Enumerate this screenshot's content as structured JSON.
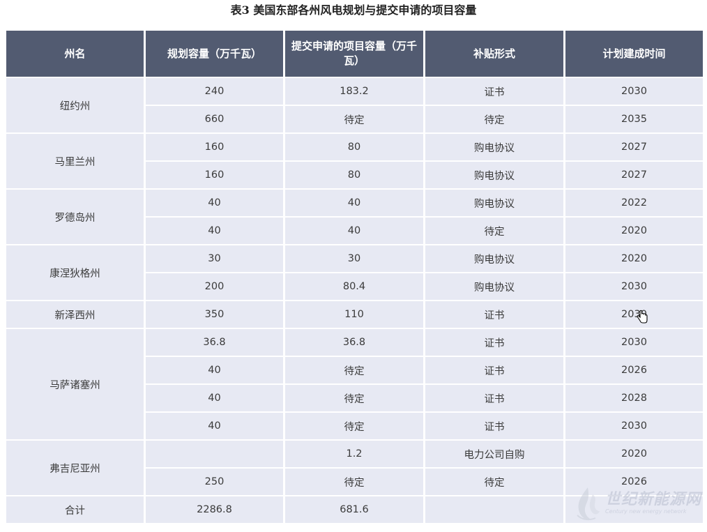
{
  "title": "表3 美国东部各州风电规划与提交申请的项目容量",
  "headers": [
    "州名",
    "规划容量（万千瓦）",
    "提交申请的项目容量（万千瓦）",
    "补贴形式",
    "计划建成时间"
  ],
  "states": [
    {
      "name": "纽约州",
      "rows": [
        {
          "planned": "240",
          "submitted": "183.2",
          "subsidy": "证书",
          "year": "2030"
        },
        {
          "planned": "660",
          "submitted": "待定",
          "subsidy": "待定",
          "year": "2035"
        }
      ]
    },
    {
      "name": "马里兰州",
      "rows": [
        {
          "planned": "160",
          "submitted": "80",
          "subsidy": "购电协议",
          "year": "2027"
        },
        {
          "planned": "160",
          "submitted": "80",
          "subsidy": "购电协议",
          "year": "2027"
        }
      ]
    },
    {
      "name": "罗德岛州",
      "rows": [
        {
          "planned": "40",
          "submitted": "40",
          "subsidy": "购电协议",
          "year": "2022"
        },
        {
          "planned": "40",
          "submitted": "40",
          "subsidy": "待定",
          "year": "2020"
        }
      ]
    },
    {
      "name": "康涅狄格州",
      "rows": [
        {
          "planned": "30",
          "submitted": "30",
          "subsidy": "购电协议",
          "year": "2020"
        },
        {
          "planned": "200",
          "submitted": "80.4",
          "subsidy": "购电协议",
          "year": "2030"
        }
      ]
    },
    {
      "name": "新泽西州",
      "rows": [
        {
          "planned": "350",
          "submitted": "110",
          "subsidy": "证书",
          "year": "2030"
        }
      ]
    },
    {
      "name": "马萨诸塞州",
      "rows": [
        {
          "planned": "36.8",
          "submitted": "36.8",
          "subsidy": "证书",
          "year": "2030"
        },
        {
          "planned": "40",
          "submitted": "待定",
          "subsidy": "证书",
          "year": "2026"
        },
        {
          "planned": "40",
          "submitted": "待定",
          "subsidy": "证书",
          "year": "2028"
        },
        {
          "planned": "40",
          "submitted": "待定",
          "subsidy": "证书",
          "year": "2030"
        }
      ]
    },
    {
      "name": "弗吉尼亚州",
      "rows": [
        {
          "planned": "",
          "submitted": "1.2",
          "subsidy": "电力公司自购",
          "year": "2020"
        },
        {
          "planned": "250",
          "submitted": "待定",
          "subsidy": "待定",
          "year": "2026"
        }
      ]
    }
  ],
  "total": {
    "label": "合计",
    "planned": "2286.8",
    "submitted": "681.6",
    "subsidy": "",
    "year": ""
  },
  "watermark": {
    "cn": "世纪新能源网",
    "en": "Century new energy network"
  },
  "colors": {
    "header_bg": "#525b71",
    "cell_bg": "#e7e9f3",
    "header_text": "#ffffff"
  },
  "icons": {
    "cursor": "hand-cursor-icon",
    "logo": "flame-logo-icon"
  }
}
